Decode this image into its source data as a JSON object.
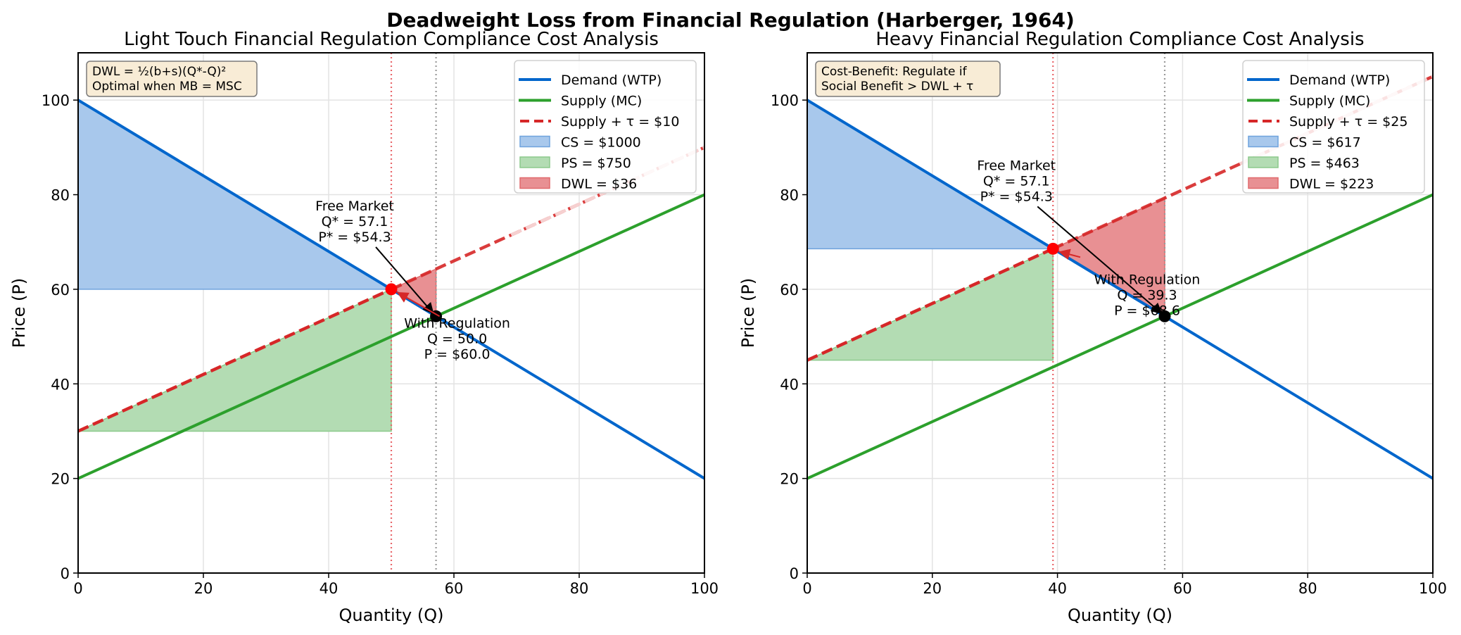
{
  "title": "Deadweight Loss from Financial Regulation (Harberger, 1964)",
  "colors": {
    "demand": "#0066cc",
    "supply": "#2ca02c",
    "tax": "#d62728",
    "cs": "#a8c8ec",
    "ps": "#b3dcb3",
    "dwl": "#e89093",
    "textbox": "#f8ecd6"
  },
  "chart_data": [
    {
      "type": "line",
      "title": "Light Touch Financial Regulation Compliance Cost Analysis",
      "xlabel": "Quantity (Q)",
      "ylabel": "Price (P)",
      "xlim": [
        0,
        100
      ],
      "ylim": [
        0,
        110
      ],
      "xticks": [
        0,
        20,
        40,
        60,
        80,
        100
      ],
      "yticks": [
        0,
        20,
        40,
        60,
        80,
        100
      ],
      "grid": true,
      "legend_position": "top-right",
      "demand": {
        "intercept": 100,
        "slope": -0.8
      },
      "supply": {
        "intercept": 20,
        "slope": 0.6
      },
      "tax": 10,
      "equilibrium": {
        "q": 57.1,
        "p": 54.3
      },
      "regulated": {
        "q": 50.0,
        "p": 60.0
      },
      "legend": [
        "Demand (WTP)",
        "Supply (MC)",
        "Supply + τ = $10",
        "CS = $1000",
        "PS = $750",
        "DWL = $36"
      ],
      "textbox": [
        "DWL = ½(b+s)(Q*-Q)²",
        "Optimal when MB = MSC"
      ],
      "annotation_free": [
        "Free Market",
        "Q* = 57.1",
        "P* = $54.3"
      ],
      "annotation_reg": [
        "With Regulation",
        "Q = 50.0",
        "P = $60.0"
      ]
    },
    {
      "type": "line",
      "title": "Heavy Financial Regulation Compliance Cost Analysis",
      "xlabel": "Quantity (Q)",
      "ylabel": "Price (P)",
      "xlim": [
        0,
        100
      ],
      "ylim": [
        0,
        110
      ],
      "xticks": [
        0,
        20,
        40,
        60,
        80,
        100
      ],
      "yticks": [
        0,
        20,
        40,
        60,
        80,
        100
      ],
      "grid": true,
      "legend_position": "top-right",
      "demand": {
        "intercept": 100,
        "slope": -0.8
      },
      "supply": {
        "intercept": 20,
        "slope": 0.6
      },
      "tax": 25,
      "equilibrium": {
        "q": 57.1,
        "p": 54.3
      },
      "regulated": {
        "q": 39.3,
        "p": 68.6
      },
      "legend": [
        "Demand (WTP)",
        "Supply (MC)",
        "Supply + τ = $25",
        "CS = $617",
        "PS = $463",
        "DWL = $223"
      ],
      "textbox": [
        "Cost-Benefit: Regulate if",
        "Social Benefit > DWL + τ"
      ],
      "annotation_free": [
        "Free Market",
        "Q* = 57.1",
        "P* = $54.3"
      ],
      "annotation_reg": [
        "With Regulation",
        "Q = 39.3",
        "P = $68.6"
      ]
    }
  ]
}
